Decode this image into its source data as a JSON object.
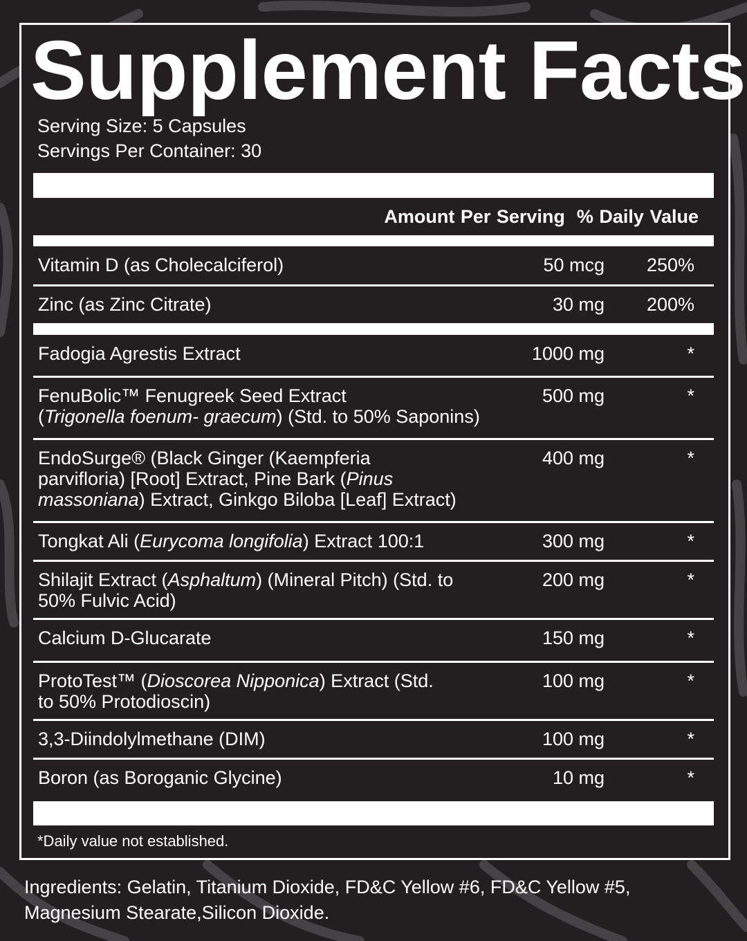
{
  "title": "Supplement Facts",
  "serving_size": "Serving Size: 5 Capsules",
  "servings_per_container": "Servings Per Container: 30",
  "header": {
    "amount": "Amount Per Serving",
    "daily_value": "% Daily Value"
  },
  "rows": [
    {
      "lines": [
        [
          {
            "t": "Vitamin D (as Cholecalciferol)"
          }
        ]
      ],
      "amount": "50 mcg",
      "dv": "250%"
    },
    {
      "lines": [
        [
          {
            "t": "Zinc (as Zinc Citrate)"
          }
        ]
      ],
      "amount": "30 mg",
      "dv": "200%"
    },
    {
      "lines": [
        [
          {
            "t": "Fadogia Agrestis Extract"
          }
        ]
      ],
      "amount": "1000 mg",
      "dv": "*"
    },
    {
      "lines": [
        [
          {
            "t": "FenuBolic™ Fenugreek Seed Extract"
          }
        ],
        [
          {
            "t": "("
          },
          {
            "t": "Trigonella foenum- graecum",
            "i": true
          },
          {
            "t": ") (Std. to 50% Saponins)"
          }
        ]
      ],
      "amount": "500 mg",
      "dv": "*"
    },
    {
      "lines": [
        [
          {
            "t": "EndoSurge® (Black Ginger (Kaempferia"
          }
        ],
        [
          {
            "t": "parvifloria) [Root] Extract, Pine Bark ("
          },
          {
            "t": "Pinus",
            "i": true
          }
        ],
        [
          {
            "t": "massoniana",
            "i": true
          },
          {
            "t": ") Extract, Ginkgo Biloba [Leaf] Extract)"
          }
        ]
      ],
      "amount": "400 mg",
      "dv": "*"
    },
    {
      "lines": [
        [
          {
            "t": "Tongkat Ali ("
          },
          {
            "t": "Eurycoma longifolia",
            "i": true
          },
          {
            "t": ") Extract 100:1"
          }
        ]
      ],
      "amount": "300 mg",
      "dv": "*"
    },
    {
      "lines": [
        [
          {
            "t": "Shilajit Extract ("
          },
          {
            "t": "Asphaltum",
            "i": true
          },
          {
            "t": ") (Mineral Pitch) (Std. to"
          }
        ],
        [
          {
            "t": "50% Fulvic Acid)"
          }
        ]
      ],
      "amount": "200 mg",
      "dv": "*"
    },
    {
      "lines": [
        [
          {
            "t": "Calcium D-Glucarate"
          }
        ]
      ],
      "amount": "150 mg",
      "dv": "*"
    },
    {
      "lines": [
        [
          {
            "t": "ProtoTest™ ("
          },
          {
            "t": "Dioscorea Nipponica",
            "i": true
          },
          {
            "t": ") Extract (Std."
          }
        ],
        [
          {
            "t": "to 50% Protodioscin)"
          }
        ]
      ],
      "amount": "100 mg",
      "dv": "*"
    },
    {
      "lines": [
        [
          {
            "t": "3,3-Diindolylmethane (DIM)"
          }
        ]
      ],
      "amount": "100 mg",
      "dv": "*"
    },
    {
      "lines": [
        [
          {
            "t": "Boron (as Boroganic Glycine)"
          }
        ]
      ],
      "amount": "10 mg",
      "dv": "*"
    }
  ],
  "footnote": "*Daily value not established.",
  "ingredients": "Ingredients: Gelatin, Titanium Dioxide, FD&C Yellow #6, FD&C Yellow #5, Magnesium Stearate,Silicon Dioxide.",
  "colors": {
    "background": "#231f20",
    "pattern": "#444244",
    "text": "#ffffff"
  }
}
